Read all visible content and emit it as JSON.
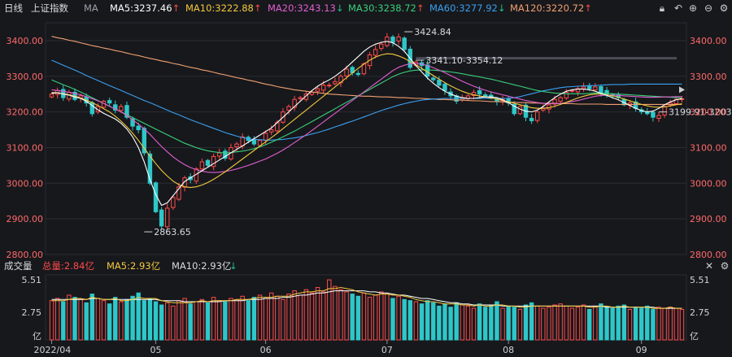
{
  "header": {
    "period": "日线",
    "index_name": "上证指数",
    "ma_label": "MA",
    "ma_items": [
      {
        "label": "MA5:3237.46",
        "color": "#ffffff",
        "arrow": "↑",
        "dir": "up"
      },
      {
        "label": "MA10:3222.88",
        "color": "#f3c93e",
        "arrow": "↑",
        "dir": "up"
      },
      {
        "label": "MA20:3243.13",
        "color": "#e15fd0",
        "arrow": "↓",
        "dir": "dn"
      },
      {
        "label": "MA30:3238.72",
        "color": "#39d07a",
        "arrow": "↑",
        "dir": "up"
      },
      {
        "label": "MA60:3277.92",
        "color": "#3aa0f0",
        "arrow": "↓",
        "dir": "dn"
      },
      {
        "label": "MA120:3220.72",
        "color": "#f0a070",
        "arrow": "↑",
        "dir": "up"
      }
    ],
    "icons": [
      "lock-icon",
      "undo-icon",
      "zoom-in-icon",
      "zoom-out-icon",
      "settings-icon"
    ]
  },
  "volume_header": {
    "title": "成交量",
    "total": "总量:2.84亿",
    "ma5": "MA5:2.93亿",
    "ma10": "MA10:2.93亿",
    "icons": [
      "close-icon",
      "settings-icon"
    ]
  },
  "colors": {
    "up": "#ff4b4b",
    "down": "#2ec7c9",
    "ma5": "#ffffff",
    "ma10": "#f3c93e",
    "ma20": "#e15fd0",
    "ma30": "#39d07a",
    "ma60": "#3aa0f0",
    "ma120": "#f0a070",
    "grid": "#2a2c33"
  },
  "chart_data": [
    {
      "type": "candlestick",
      "ylim": [
        2800,
        3450
      ],
      "yticks": [
        2800,
        2900,
        3000,
        3100,
        3200,
        3300,
        3400
      ],
      "ytick_labels": [
        "2800.00",
        "2900.00",
        "3000.00",
        "3100.00",
        "3200.00",
        "3300.00",
        "3400.00"
      ],
      "xtick_labels": [
        "2022/04",
        "05",
        "06",
        "07",
        "08",
        "09"
      ],
      "xtick_index": [
        0,
        18,
        37,
        58,
        79,
        102
      ],
      "annotations": [
        {
          "text": "3424.84",
          "index": 61,
          "value": 3424.84
        },
        {
          "text": "2863.65",
          "index": 16,
          "value": 2863.65
        },
        {
          "text": "3341.10-3354.12",
          "index": 63,
          "value": 3345
        },
        {
          "text": "3199.91-3203.",
          "index": 105,
          "value": 3200
        }
      ],
      "closes": [
        3250,
        3260,
        3240,
        3255,
        3235,
        3245,
        3225,
        3195,
        3215,
        3230,
        3225,
        3205,
        3215,
        3185,
        3160,
        3150,
        3085,
        3000,
        2920,
        2880,
        2930,
        2960,
        2990,
        3015,
        3010,
        3040,
        3060,
        3050,
        3075,
        3085,
        3070,
        3100,
        3110,
        3130,
        3120,
        3110,
        3120,
        3140,
        3150,
        3170,
        3200,
        3215,
        3235,
        3240,
        3250,
        3255,
        3265,
        3275,
        3275,
        3285,
        3300,
        3320,
        3310,
        3305,
        3335,
        3360,
        3375,
        3390,
        3410,
        3395,
        3410,
        3375,
        3325,
        3340,
        3330,
        3300,
        3290,
        3275,
        3260,
        3245,
        3230,
        3240,
        3245,
        3255,
        3250,
        3245,
        3240,
        3230,
        3235,
        3225,
        3195,
        3215,
        3185,
        3175,
        3200,
        3210,
        3220,
        3235,
        3240,
        3255,
        3260,
        3265,
        3270,
        3265,
        3270,
        3255,
        3250,
        3245,
        3240,
        3220,
        3225,
        3210,
        3200,
        3195,
        3185,
        3190,
        3215,
        3225,
        3235,
        3237
      ],
      "ma120": [
        3412,
        3408,
        3405,
        3401,
        3398,
        3394,
        3390,
        3386,
        3383,
        3379,
        3376,
        3372,
        3369,
        3365,
        3361,
        3358,
        3354,
        3350,
        3347,
        3343,
        3340,
        3336,
        3333,
        3329,
        3325,
        3322,
        3318,
        3315,
        3311,
        3307,
        3304,
        3300,
        3296,
        3293,
        3289,
        3286,
        3282,
        3278,
        3275,
        3271,
        3268,
        3265,
        3262,
        3260,
        3258,
        3256,
        3254,
        3252,
        3250,
        3249,
        3248,
        3247,
        3246,
        3245,
        3244,
        3244,
        3243,
        3242,
        3242,
        3241,
        3240,
        3240,
        3239,
        3238,
        3238,
        3237,
        3236,
        3235,
        3235,
        3234,
        3233,
        3233,
        3232,
        3231,
        3231,
        3230,
        3229,
        3229,
        3228,
        3227,
        3227,
        3226,
        3226,
        3225,
        3225,
        3224,
        3224,
        3224,
        3223,
        3223,
        3223,
        3222,
        3222,
        3222,
        3222,
        3222,
        3221,
        3221,
        3221,
        3221,
        3221,
        3221,
        3221,
        3221,
        3221,
        3221,
        3221,
        3221,
        3221,
        3221
      ],
      "ma60": [
        3345,
        3338,
        3331,
        3324,
        3317,
        3310,
        3302,
        3295,
        3288,
        3281,
        3274,
        3267,
        3260,
        3253,
        3246,
        3239,
        3232,
        3226,
        3219,
        3212,
        3205,
        3198,
        3192,
        3185,
        3178,
        3172,
        3166,
        3160,
        3154,
        3148,
        3142,
        3137,
        3132,
        3128,
        3125,
        3123,
        3122,
        3121,
        3121,
        3122,
        3123,
        3125,
        3127,
        3130,
        3134,
        3138,
        3142,
        3147,
        3152,
        3158,
        3163,
        3169,
        3174,
        3180,
        3186,
        3192,
        3198,
        3204,
        3209,
        3214,
        3219,
        3223,
        3227,
        3230,
        3233,
        3235,
        3236,
        3237,
        3238,
        3238,
        3238,
        3238,
        3238,
        3238,
        3238,
        3238,
        3238,
        3238,
        3238,
        3238,
        3240,
        3243,
        3247,
        3251,
        3255,
        3259,
        3262,
        3265,
        3268,
        3270,
        3271,
        3272,
        3273,
        3273,
        3274,
        3275,
        3276,
        3277,
        3277,
        3277,
        3278,
        3278,
        3278,
        3278,
        3278,
        3278,
        3278,
        3278,
        3278,
        3278
      ],
      "ma30": [
        3290,
        3283,
        3276,
        3270,
        3263,
        3256,
        3248,
        3240,
        3232,
        3224,
        3216,
        3208,
        3200,
        3192,
        3184,
        3176,
        3168,
        3160,
        3152,
        3144,
        3136,
        3128,
        3120,
        3112,
        3106,
        3100,
        3095,
        3091,
        3088,
        3086,
        3085,
        3086,
        3088,
        3090,
        3093,
        3097,
        3102,
        3108,
        3115,
        3122,
        3130,
        3138,
        3146,
        3155,
        3164,
        3173,
        3182,
        3191,
        3200,
        3209,
        3218,
        3227,
        3236,
        3245,
        3254,
        3263,
        3272,
        3281,
        3290,
        3299,
        3306,
        3311,
        3315,
        3317,
        3318,
        3318,
        3317,
        3316,
        3314,
        3312,
        3310,
        3307,
        3304,
        3301,
        3298,
        3295,
        3292,
        3288,
        3284,
        3280,
        3276,
        3272,
        3268,
        3264,
        3260,
        3257,
        3255,
        3253,
        3252,
        3251,
        3251,
        3251,
        3251,
        3252,
        3253,
        3253,
        3252,
        3251,
        3250,
        3249,
        3248,
        3247,
        3246,
        3245,
        3244,
        3243,
        3242,
        3241,
        3240,
        3239
      ],
      "ma20": [
        3262,
        3260,
        3258,
        3255,
        3252,
        3248,
        3243,
        3237,
        3231,
        3224,
        3216,
        3208,
        3200,
        3190,
        3178,
        3166,
        3152,
        3137,
        3120,
        3103,
        3088,
        3074,
        3062,
        3052,
        3044,
        3038,
        3034,
        3031,
        3030,
        3031,
        3033,
        3036,
        3040,
        3045,
        3050,
        3056,
        3062,
        3068,
        3076,
        3084,
        3093,
        3103,
        3114,
        3125,
        3136,
        3148,
        3160,
        3172,
        3184,
        3196,
        3208,
        3220,
        3232,
        3244,
        3256,
        3268,
        3280,
        3292,
        3304,
        3316,
        3325,
        3331,
        3335,
        3336,
        3334,
        3330,
        3324,
        3317,
        3310,
        3302,
        3294,
        3286,
        3279,
        3272,
        3266,
        3261,
        3256,
        3252,
        3248,
        3244,
        3240,
        3236,
        3232,
        3229,
        3226,
        3224,
        3223,
        3223,
        3224,
        3226,
        3229,
        3232,
        3236,
        3240,
        3244,
        3246,
        3247,
        3247,
        3246,
        3245,
        3244,
        3243,
        3242,
        3241,
        3241,
        3241,
        3242,
        3242,
        3243,
        3243
      ],
      "ma10": [
        3255,
        3253,
        3251,
        3248,
        3244,
        3239,
        3233,
        3226,
        3218,
        3209,
        3200,
        3188,
        3174,
        3158,
        3140,
        3120,
        3098,
        3076,
        3055,
        3036,
        3020,
        3006,
        2996,
        2990,
        2988,
        2990,
        2995,
        3002,
        3011,
        3021,
        3032,
        3044,
        3056,
        3068,
        3080,
        3092,
        3104,
        3116,
        3128,
        3140,
        3153,
        3166,
        3179,
        3192,
        3205,
        3218,
        3231,
        3244,
        3257,
        3270,
        3283,
        3296,
        3309,
        3322,
        3334,
        3345,
        3354,
        3360,
        3363,
        3362,
        3357,
        3350,
        3341,
        3332,
        3322,
        3312,
        3302,
        3292,
        3282,
        3273,
        3265,
        3258,
        3252,
        3248,
        3245,
        3242,
        3239,
        3236,
        3232,
        3228,
        3224,
        3220,
        3216,
        3212,
        3210,
        3210,
        3212,
        3216,
        3221,
        3227,
        3233,
        3239,
        3244,
        3248,
        3250,
        3250,
        3248,
        3245,
        3241,
        3236,
        3231,
        3226,
        3221,
        3217,
        3214,
        3213,
        3214,
        3217,
        3220,
        3223
      ],
      "ma5": [
        3252,
        3254,
        3250,
        3247,
        3242,
        3238,
        3230,
        3218,
        3206,
        3196,
        3188,
        3180,
        3168,
        3152,
        3130,
        3100,
        3060,
        3010,
        2968,
        2938,
        2945,
        2965,
        2985,
        3005,
        3015,
        3025,
        3035,
        3045,
        3055,
        3065,
        3075,
        3085,
        3095,
        3105,
        3115,
        3125,
        3135,
        3145,
        3155,
        3170,
        3185,
        3200,
        3215,
        3230,
        3245,
        3260,
        3272,
        3282,
        3290,
        3300,
        3312,
        3325,
        3340,
        3355,
        3370,
        3382,
        3390,
        3395,
        3398,
        3394,
        3384,
        3370,
        3350,
        3330,
        3312,
        3295,
        3280,
        3268,
        3258,
        3250,
        3244,
        3240,
        3238,
        3238,
        3240,
        3242,
        3242,
        3240,
        3234,
        3226,
        3216,
        3208,
        3202,
        3200,
        3205,
        3215,
        3228,
        3240,
        3250,
        3258,
        3262,
        3264,
        3264,
        3262,
        3258,
        3252,
        3246,
        3240,
        3234,
        3226,
        3218,
        3210,
        3204,
        3200,
        3202,
        3210,
        3220,
        3228,
        3234,
        3237
      ]
    },
    {
      "type": "bar",
      "title": "成交量",
      "unit": "亿",
      "ylim": [
        0,
        5.51
      ],
      "ytick_labels": [
        "5.51",
        "2.75",
        "亿"
      ],
      "volumes": [
        3.6,
        3.8,
        3.5,
        4.1,
        3.9,
        3.7,
        3.4,
        4.2,
        3.8,
        3.6,
        3.3,
        3.9,
        3.5,
        3.7,
        4.0,
        4.3,
        3.6,
        3.8,
        3.5,
        3.2,
        3.4,
        3.1,
        3.6,
        3.8,
        3.3,
        3.5,
        3.7,
        3.4,
        3.9,
        3.6,
        3.5,
        3.8,
        3.7,
        4.0,
        3.6,
        3.9,
        4.1,
        3.8,
        4.3,
        4.0,
        3.7,
        4.2,
        4.5,
        4.1,
        4.6,
        4.3,
        4.8,
        4.4,
        5.5,
        4.9,
        4.6,
        4.4,
        4.2,
        4.0,
        4.3,
        3.9,
        4.1,
        4.4,
        4.2,
        3.8,
        4.0,
        3.7,
        3.6,
        3.5,
        3.3,
        3.6,
        3.4,
        3.1,
        3.3,
        3.0,
        3.4,
        3.2,
        3.1,
        2.9,
        3.3,
        3.0,
        3.2,
        3.5,
        2.9,
        3.1,
        3.0,
        2.8,
        3.2,
        3.4,
        3.1,
        2.9,
        3.0,
        3.2,
        3.3,
        3.1,
        2.9,
        3.0,
        3.2,
        2.8,
        3.1,
        3.3,
        3.0,
        2.9,
        3.1,
        3.2,
        2.8,
        3.0,
        2.9,
        3.1,
        2.8,
        3.0,
        2.9,
        3.0,
        2.9,
        2.8
      ],
      "ma5_vol": [
        3.6,
        3.6,
        3.6,
        3.7,
        3.8,
        3.8,
        3.7,
        3.9,
        3.8,
        3.7,
        3.7,
        3.8,
        3.6,
        3.6,
        3.7,
        3.9,
        3.8,
        3.8,
        3.8,
        3.6,
        3.5,
        3.4,
        3.4,
        3.4,
        3.4,
        3.5,
        3.6,
        3.5,
        3.6,
        3.6,
        3.6,
        3.6,
        3.7,
        3.7,
        3.7,
        3.8,
        3.9,
        3.9,
        3.9,
        4.0,
        4.0,
        4.0,
        4.2,
        4.3,
        4.4,
        4.4,
        4.5,
        4.5,
        4.7,
        4.7,
        4.8,
        4.7,
        4.6,
        4.4,
        4.3,
        4.2,
        4.1,
        4.2,
        4.2,
        4.1,
        4.1,
        4.0,
        3.9,
        3.7,
        3.6,
        3.5,
        3.5,
        3.4,
        3.3,
        3.3,
        3.3,
        3.2,
        3.2,
        3.1,
        3.2,
        3.1,
        3.1,
        3.2,
        3.2,
        3.1,
        3.1,
        3.0,
        3.0,
        3.1,
        3.1,
        3.1,
        3.1,
        3.1,
        3.1,
        3.1,
        3.1,
        3.1,
        3.1,
        3.0,
        3.0,
        3.1,
        3.1,
        3.0,
        3.0,
        3.1,
        3.0,
        3.0,
        3.0,
        3.0,
        2.9,
        2.9,
        2.9,
        3.0,
        2.9,
        2.9
      ],
      "ma10_vol": [
        3.7,
        3.7,
        3.7,
        3.7,
        3.7,
        3.7,
        3.7,
        3.8,
        3.8,
        3.7,
        3.7,
        3.7,
        3.7,
        3.7,
        3.7,
        3.7,
        3.7,
        3.7,
        3.7,
        3.6,
        3.6,
        3.6,
        3.6,
        3.5,
        3.5,
        3.5,
        3.5,
        3.5,
        3.5,
        3.5,
        3.6,
        3.6,
        3.6,
        3.6,
        3.7,
        3.7,
        3.7,
        3.8,
        3.8,
        3.8,
        3.9,
        3.9,
        4.0,
        4.1,
        4.1,
        4.2,
        4.3,
        4.3,
        4.4,
        4.5,
        4.5,
        4.5,
        4.5,
        4.5,
        4.5,
        4.4,
        4.4,
        4.3,
        4.3,
        4.2,
        4.1,
        4.1,
        4.0,
        3.9,
        3.8,
        3.8,
        3.7,
        3.6,
        3.5,
        3.4,
        3.4,
        3.3,
        3.3,
        3.2,
        3.2,
        3.2,
        3.2,
        3.2,
        3.1,
        3.1,
        3.1,
        3.1,
        3.1,
        3.1,
        3.1,
        3.1,
        3.1,
        3.1,
        3.1,
        3.1,
        3.1,
        3.1,
        3.1,
        3.1,
        3.1,
        3.1,
        3.0,
        3.0,
        3.0,
        3.0,
        3.0,
        3.0,
        3.0,
        3.0,
        3.0,
        2.9,
        2.9,
        2.9,
        2.9,
        2.9
      ]
    }
  ]
}
